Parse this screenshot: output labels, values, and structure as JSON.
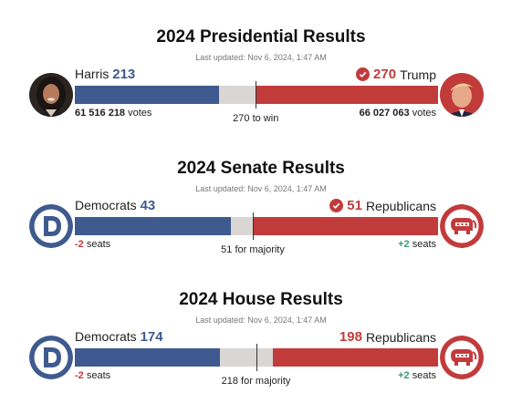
{
  "presidential": {
    "title": "2024 Presidential Results",
    "updated": "Last updated: Nov 6, 2024, 1:47 AM",
    "left_name": "Harris",
    "left_count": "213",
    "left_votes_num": "61 516 218",
    "left_votes_word": "votes",
    "right_name": "Trump",
    "right_count": "270",
    "right_votes_num": "66 027 063",
    "right_votes_word": "votes",
    "threshold_label": "270 to win",
    "total": 538,
    "dem_value": 213,
    "rep_value": 270,
    "threshold_value": 270,
    "winner": "right",
    "left_icon": "harris-portrait",
    "right_icon": "trump-portrait"
  },
  "senate": {
    "title": "2024 Senate Results",
    "updated": "Last updated: Nov 6, 2024, 1:47 AM",
    "left_name": "Democrats",
    "left_count": "43",
    "left_change": "-2",
    "left_change_word": "seats",
    "right_name": "Republicans",
    "right_count": "51",
    "right_change": "+2",
    "right_change_word": "seats",
    "threshold_label": "51 for majority",
    "total": 100,
    "dem_value": 43,
    "rep_value": 51,
    "threshold_value": 51,
    "winner": "right",
    "left_icon": "democrat-logo-icon",
    "right_icon": "republican-elephant-icon"
  },
  "house": {
    "title": "2024 House Results",
    "updated": "Last updated: Nov 6, 2024, 1:47 AM",
    "left_name": "Democrats",
    "left_count": "174",
    "left_change": "-2",
    "left_change_word": "seats",
    "right_name": "Republicans",
    "right_count": "198",
    "right_change": "+2",
    "right_change_word": "seats",
    "threshold_label": "218 for majority",
    "total": 435,
    "dem_value": 174,
    "rep_value": 198,
    "threshold_value": 218,
    "winner": "none",
    "left_icon": "democrat-logo-icon",
    "right_icon": "republican-elephant-icon"
  },
  "colors": {
    "dem": "#3e5a8e",
    "rep": "#c23b3b",
    "uncalled": "#d9d6d4",
    "gain": "#3a9a7a"
  }
}
